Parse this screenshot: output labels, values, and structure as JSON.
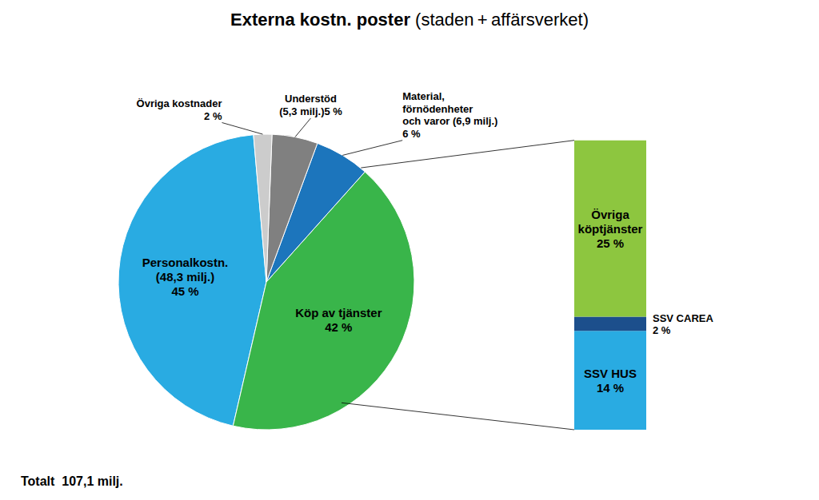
{
  "chart_data": [
    {
      "type": "pie",
      "title": "Externa kostn. poster",
      "subtitle": "(staden + affärsverket)",
      "values": [
        45,
        42,
        6,
        5,
        2
      ],
      "value_labels": [
        "Personalkostn.\n(48,3 milj.)\n45 %",
        "Köp av tjänster\n42 %",
        "Material,\nförnödenheter\noch varor (6,9 milj.)\n6 %",
        "Understöd\n(5,3 milj.)5 %",
        "Övriga kostnader\n2 %"
      ],
      "colors": [
        "#29ABE2",
        "#39B54A",
        "#1C75BC",
        "#808080",
        "#CCCCCC"
      ],
      "annotations": [
        "Totalt  107,1 milj."
      ]
    },
    {
      "type": "bar",
      "categories": [
        null
      ],
      "stacked": true,
      "ylim": [
        0,
        43
      ],
      "tick_labels": false,
      "series": [
        {
          "color": "#29ABE2",
          "values": [
            14
          ],
          "value_labels": [
            "SSV HUS\n14 %"
          ]
        },
        {
          "color": "#1C4F8C",
          "values": [
            2
          ],
          "value_labels": [
            "SSV CAREA\n2 %"
          ]
        },
        {
          "color": "#8DC63F",
          "values": [
            25
          ],
          "value_labels": [
            "Övriga\nköptjänster\n25 %"
          ]
        }
      ]
    }
  ]
}
